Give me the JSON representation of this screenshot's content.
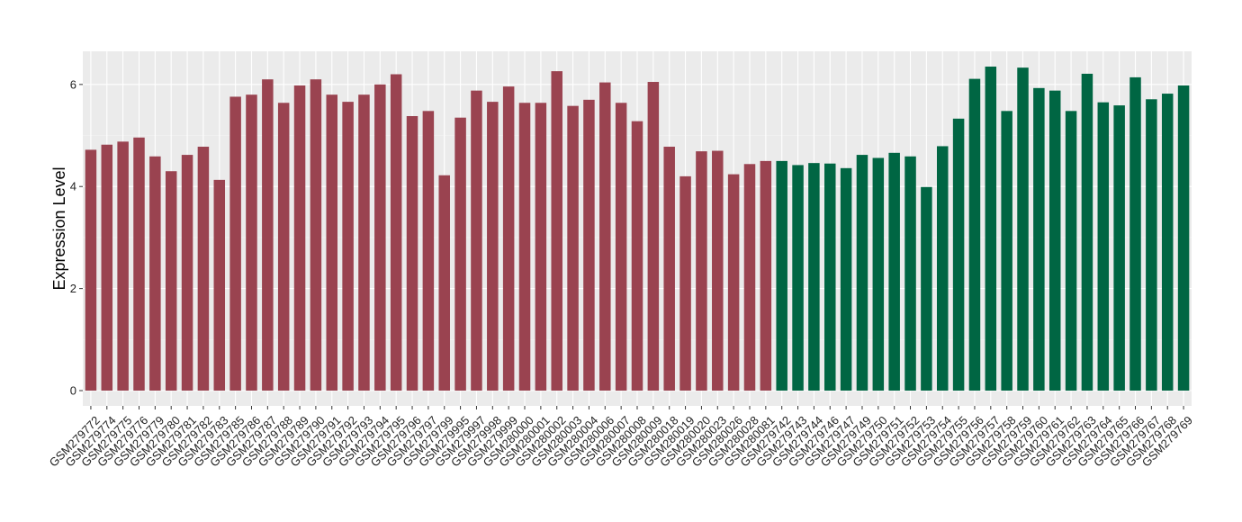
{
  "chart_data": {
    "type": "bar",
    "title": "",
    "xlabel": "",
    "ylabel": "Expression Level",
    "ylim": [
      -0.3,
      6.65
    ],
    "yticks": [
      0,
      2,
      4,
      6
    ],
    "grid": true,
    "legend": "none",
    "colors": {
      "panel_bg": "#ebebeb",
      "grid_major": "#ffffff",
      "grid_minor": "#f4f4f4",
      "group_a": "#9a4350",
      "group_b": "#006643"
    },
    "categories": [
      "GSM279772",
      "GSM279774",
      "GSM279775",
      "GSM279776",
      "GSM279779",
      "GSM279780",
      "GSM279781",
      "GSM279782",
      "GSM279783",
      "GSM279785",
      "GSM279786",
      "GSM279787",
      "GSM279788",
      "GSM279789",
      "GSM279790",
      "GSM279791",
      "GSM279792",
      "GSM279793",
      "GSM279794",
      "GSM279795",
      "GSM279796",
      "GSM279797",
      "GSM279799",
      "GSM279995",
      "GSM279997",
      "GSM279998",
      "GSM279999",
      "GSM280000",
      "GSM280001",
      "GSM280002",
      "GSM280003",
      "GSM280004",
      "GSM280006",
      "GSM280007",
      "GSM280008",
      "GSM280009",
      "GSM280018",
      "GSM280019",
      "GSM280020",
      "GSM280023",
      "GSM280026",
      "GSM280028",
      "GSM280081",
      "GSM279742",
      "GSM279743",
      "GSM279744",
      "GSM279746",
      "GSM279747",
      "GSM279749",
      "GSM279750",
      "GSM279751",
      "GSM279752",
      "GSM279753",
      "GSM279754",
      "GSM279755",
      "GSM279756",
      "GSM279757",
      "GSM279758",
      "GSM279759",
      "GSM279760",
      "GSM279761",
      "GSM279762",
      "GSM279763",
      "GSM279764",
      "GSM279765",
      "GSM279766",
      "GSM279767",
      "GSM279768",
      "GSM279769"
    ],
    "values": [
      4.72,
      4.82,
      4.88,
      4.96,
      4.59,
      4.3,
      4.62,
      4.78,
      4.13,
      5.76,
      5.8,
      6.1,
      5.64,
      5.98,
      6.1,
      5.8,
      5.66,
      5.8,
      6.0,
      6.2,
      5.38,
      5.48,
      4.22,
      5.35,
      5.88,
      5.66,
      5.96,
      5.64,
      5.64,
      6.26,
      5.58,
      5.7,
      6.04,
      5.64,
      5.28,
      6.05,
      4.78,
      4.2,
      4.69,
      4.7,
      4.24,
      4.44,
      4.5,
      4.5,
      4.42,
      4.46,
      4.45,
      4.36,
      4.62,
      4.56,
      4.66,
      4.59,
      3.99,
      4.79,
      5.33,
      6.11,
      6.35,
      5.48,
      6.33,
      5.93,
      5.88,
      5.48,
      6.21,
      5.65,
      5.59,
      6.14,
      5.71,
      5.82,
      5.98
    ],
    "group_split_index": 43
  }
}
